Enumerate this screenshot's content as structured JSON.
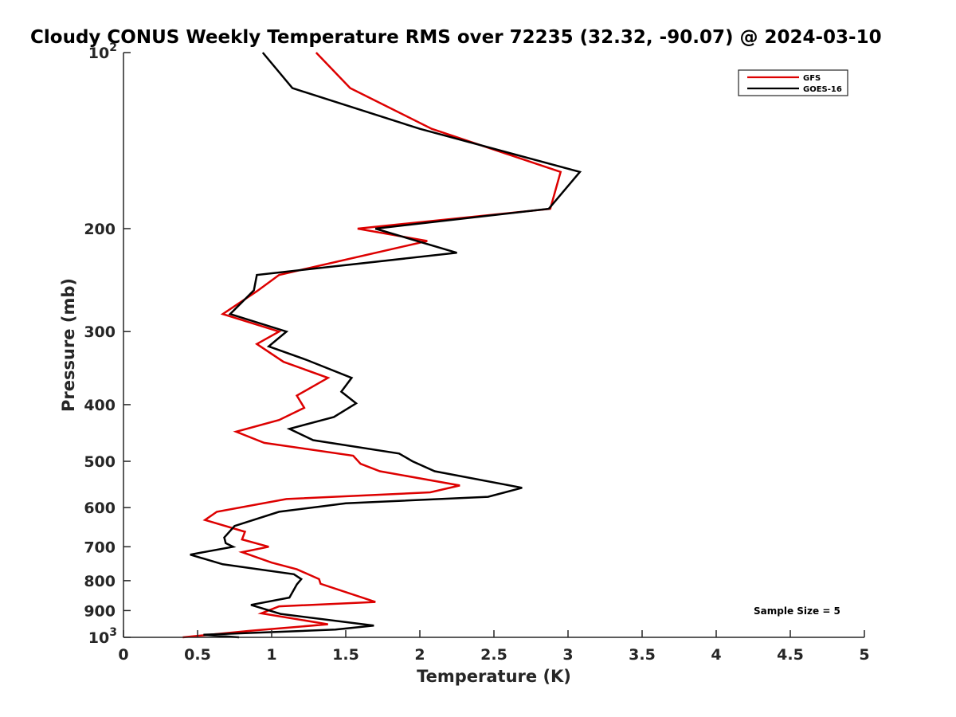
{
  "chart_data": {
    "type": "line",
    "title": "Cloudy CONUS Weekly Temperature RMS over 72235 (32.32, -90.07) @ 2024-03-10",
    "xlabel": "Temperature (K)",
    "ylabel": "Pressure (mb)",
    "xlim": [
      0,
      5
    ],
    "ylim": [
      100,
      1000
    ],
    "yscale": "log",
    "yreversed": true,
    "xticks": [
      "0",
      "0.5",
      "1",
      "1.5",
      "2",
      "2.5",
      "3",
      "3.5",
      "4",
      "4.5",
      "5"
    ],
    "xtick_values": [
      0,
      0.5,
      1,
      1.5,
      2,
      2.5,
      3,
      3.5,
      4,
      4.5,
      5
    ],
    "yticks": [
      {
        "value": 100,
        "base": "10",
        "exp": "2"
      },
      {
        "value": 200,
        "label": "200"
      },
      {
        "value": 300,
        "label": "300"
      },
      {
        "value": 400,
        "label": "400"
      },
      {
        "value": 500,
        "label": "500"
      },
      {
        "value": 600,
        "label": "600"
      },
      {
        "value": 700,
        "label": "700"
      },
      {
        "value": 800,
        "label": "800"
      },
      {
        "value": 900,
        "label": "900"
      },
      {
        "value": 1000,
        "base": "10",
        "exp": "3"
      }
    ],
    "legend_position": "top-right",
    "annotation": "Sample Size = 5",
    "grid": false,
    "series": [
      {
        "name": "GFS",
        "color": "#dd0000",
        "points": [
          [
            1.3,
            100
          ],
          [
            1.53,
            115
          ],
          [
            2.08,
            135
          ],
          [
            2.95,
            160
          ],
          [
            2.88,
            185
          ],
          [
            1.58,
            200
          ],
          [
            2.05,
            210
          ],
          [
            1.05,
            240
          ],
          [
            0.9,
            256
          ],
          [
            0.67,
            280
          ],
          [
            1.05,
            300
          ],
          [
            0.9,
            315
          ],
          [
            1.08,
            338
          ],
          [
            1.38,
            360
          ],
          [
            1.17,
            386
          ],
          [
            1.22,
            405
          ],
          [
            1.05,
            425
          ],
          [
            0.76,
            445
          ],
          [
            0.95,
            465
          ],
          [
            1.55,
            489
          ],
          [
            1.6,
            505
          ],
          [
            1.73,
            520
          ],
          [
            2.27,
            550
          ],
          [
            2.07,
            565
          ],
          [
            1.1,
            580
          ],
          [
            0.63,
            610
          ],
          [
            0.55,
            630
          ],
          [
            0.82,
            660
          ],
          [
            0.8,
            680
          ],
          [
            0.98,
            700
          ],
          [
            0.8,
            715
          ],
          [
            1.0,
            745
          ],
          [
            1.17,
            765
          ],
          [
            1.32,
            795
          ],
          [
            1.33,
            810
          ],
          [
            1.7,
            870
          ],
          [
            1.05,
            885
          ],
          [
            0.93,
            910
          ],
          [
            1.38,
            950
          ],
          [
            0.85,
            975
          ],
          [
            0.4,
            1000
          ]
        ]
      },
      {
        "name": "GOES-16",
        "color": "#000000",
        "points": [
          [
            0.94,
            100
          ],
          [
            1.14,
            115
          ],
          [
            2.0,
            135
          ],
          [
            3.08,
            160
          ],
          [
            2.87,
            185
          ],
          [
            1.7,
            200
          ],
          [
            2.25,
            220
          ],
          [
            0.9,
            240
          ],
          [
            0.88,
            255
          ],
          [
            0.72,
            280
          ],
          [
            1.1,
            300
          ],
          [
            0.98,
            318
          ],
          [
            1.23,
            335
          ],
          [
            1.54,
            360
          ],
          [
            1.47,
            380
          ],
          [
            1.57,
            398
          ],
          [
            1.42,
            420
          ],
          [
            1.12,
            440
          ],
          [
            1.28,
            460
          ],
          [
            1.86,
            485
          ],
          [
            1.95,
            500
          ],
          [
            2.1,
            520
          ],
          [
            2.69,
            555
          ],
          [
            2.46,
            575
          ],
          [
            1.5,
            590
          ],
          [
            1.05,
            610
          ],
          [
            0.75,
            645
          ],
          [
            0.68,
            675
          ],
          [
            0.69,
            690
          ],
          [
            0.74,
            700
          ],
          [
            0.45,
            722
          ],
          [
            0.67,
            750
          ],
          [
            1.15,
            780
          ],
          [
            1.2,
            795
          ],
          [
            1.17,
            812
          ],
          [
            1.12,
            855
          ],
          [
            0.86,
            880
          ],
          [
            1.06,
            912
          ],
          [
            1.69,
            955
          ],
          [
            1.43,
            970
          ],
          [
            0.54,
            990
          ],
          [
            0.78,
            1000
          ]
        ]
      }
    ]
  }
}
